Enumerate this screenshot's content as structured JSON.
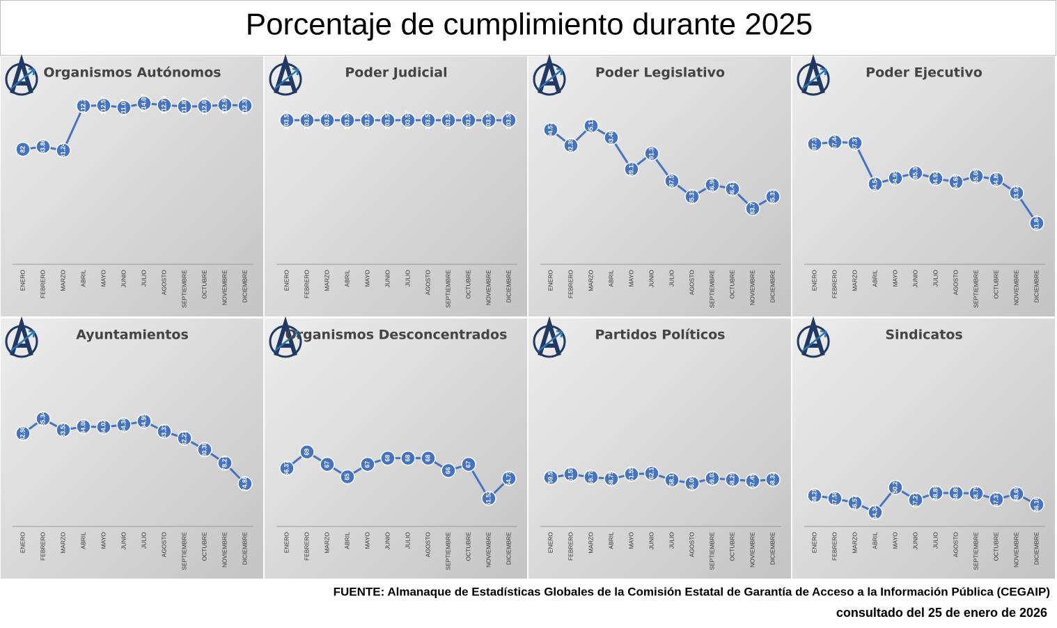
{
  "title": "Porcentaje de cumplimiento durante 2025",
  "source": "FUENTE: Almanaque de Estadísticas Globales de la Comisión Estatal de Garantía de Acceso a la Información Pública (CEGAIP)",
  "consulted": "consultado del 25 de enero de 2026",
  "chart_data": [
    {
      "type": "line",
      "title": "Organismos Autónomos",
      "color": "#4472c4",
      "ylim": [
        2,
        123
      ],
      "categories": [
        "ENERO",
        "FEBRERO",
        "MARZO",
        "ABRIL",
        "MAYO",
        "JUNIO",
        "JULIO",
        "AGOSTO",
        "SEPTIEMBRE",
        "OCTUBRE",
        "NOVIEMBRE",
        "DICIEMBRE"
      ],
      "values": [
        82,
        83.86,
        81.24,
        112.2,
        112.57,
        111.07,
        114.07,
        112.76,
        111.82,
        112.01,
        112.95,
        112.38
      ]
    },
    {
      "type": "line",
      "title": "Poder Judicial",
      "color": "#4472c4",
      "ylim": [
        0,
        125
      ],
      "categories": [
        "ENERO",
        "FEBRERO",
        "MARZO",
        "ABRIL",
        "MAYO",
        "JUNIO",
        "JULIO",
        "AGOSTO",
        "SEPTIEMBRE",
        "OCTUBRE",
        "NOVIEMBRE",
        "DICIEMBRE"
      ],
      "values": [
        103.57,
        103.57,
        103.57,
        103.57,
        103.57,
        103.57,
        103.57,
        103.57,
        103.57,
        103.57,
        103.57,
        103.57
      ]
    },
    {
      "type": "line",
      "title": "Poder Legislativo",
      "color": "#4472c4",
      "ylim": [
        76,
        100
      ],
      "categories": [
        "ENERO",
        "FEBRERO",
        "MARZO",
        "ABRIL",
        "MAYO",
        "JUNIO",
        "JULIO",
        "AGOSTO",
        "SEPTIEMBRE",
        "OCTUBRE",
        "NOVIEMBRE",
        "DICIEMBRE"
      ],
      "values": [
        94.57,
        92.39,
        95.11,
        93.48,
        89.13,
        91.3,
        87.5,
        85.33,
        86.96,
        86.41,
        83.7,
        85.33
      ]
    },
    {
      "type": "line",
      "title": "Poder Ejecutivo",
      "color": "#4472c4",
      "ylim": [
        79,
        91
      ],
      "categories": [
        "ENERO",
        "FEBRERO",
        "MARZO",
        "ABRIL",
        "MAYO",
        "JUNIO",
        "JULIO",
        "AGOSTO",
        "SEPTIEMBRE",
        "OCTUBRE",
        "NOVIEMBRE",
        "DICIEMBRE"
      ],
      "values": [
        87.3,
        87.44,
        87.37,
        84.54,
        84.95,
        85.3,
        84.92,
        84.68,
        85.08,
        84.86,
        83.92,
        81.84
      ]
    },
    {
      "type": "line",
      "title": "Ayuntamientos",
      "color": "#4472c4",
      "ylim": [
        68,
        96
      ],
      "categories": [
        "ENERO",
        "FEBRERO",
        "MARZO",
        "ABRIL",
        "MAYO",
        "JUNIO",
        "JULIO",
        "AGOSTO",
        "SEPTIEMBRE",
        "OCTUBRE",
        "NOVIEMBRE",
        "DICIEMBRE"
      ],
      "values": [
        82.98,
        85.34,
        83.53,
        84.08,
        84.02,
        84.36,
        84.95,
        83.31,
        82.21,
        80.38,
        78.21,
        74.88
      ]
    },
    {
      "type": "line",
      "title": "Organismos Desconcentrados",
      "color": "#4472c4",
      "ylim": [
        57,
        85
      ],
      "categories": [
        "ENERO",
        "FEBRERO",
        "MARZO",
        "ABRIL",
        "MAYO",
        "JUNIO",
        "JULIO",
        "AGOSTO",
        "SEPTIEMBRE",
        "OCTUBRE",
        "NOVIEMBRE",
        "DICIEMBRE"
      ],
      "values": [
        66.37,
        69,
        67,
        65,
        67,
        68,
        68,
        68,
        66,
        67,
        61.52,
        64.73
      ]
    },
    {
      "type": "line",
      "title": "Partidos Políticos",
      "color": "#4472c4",
      "ylim": [
        30,
        135
      ],
      "categories": [
        "ENERO",
        "FEBRERO",
        "MARZO",
        "ABRIL",
        "MAYO",
        "JUNIO",
        "JULIO",
        "AGOSTO",
        "SEPTIEMBRE",
        "OCTUBRE",
        "NOVIEMBRE",
        "DICIEMBRE"
      ],
      "values": [
        59.5,
        61.55,
        59.78,
        58.75,
        61.55,
        62.1,
        58.1,
        56.05,
        59.03,
        58.29,
        57.45,
        58.32
      ]
    },
    {
      "type": "line",
      "title": "Sindicatos",
      "color": "#4472c4",
      "ylim": [
        41,
        82
      ],
      "categories": [
        "ENERO",
        "FEBRERO",
        "MARZO",
        "ABRIL",
        "MAYO",
        "JUNIO",
        "JULIO",
        "AGOSTO",
        "SEPTIEMBRE",
        "OCTUBRE",
        "NOVIEMBRE",
        "DICIEMBRE"
      ],
      "values": [
        48.28,
        47.58,
        46.57,
        44.34,
        50.2,
        47.27,
        48.89,
        48.89,
        48.79,
        47.37,
        48.69,
        46.16
      ]
    }
  ]
}
